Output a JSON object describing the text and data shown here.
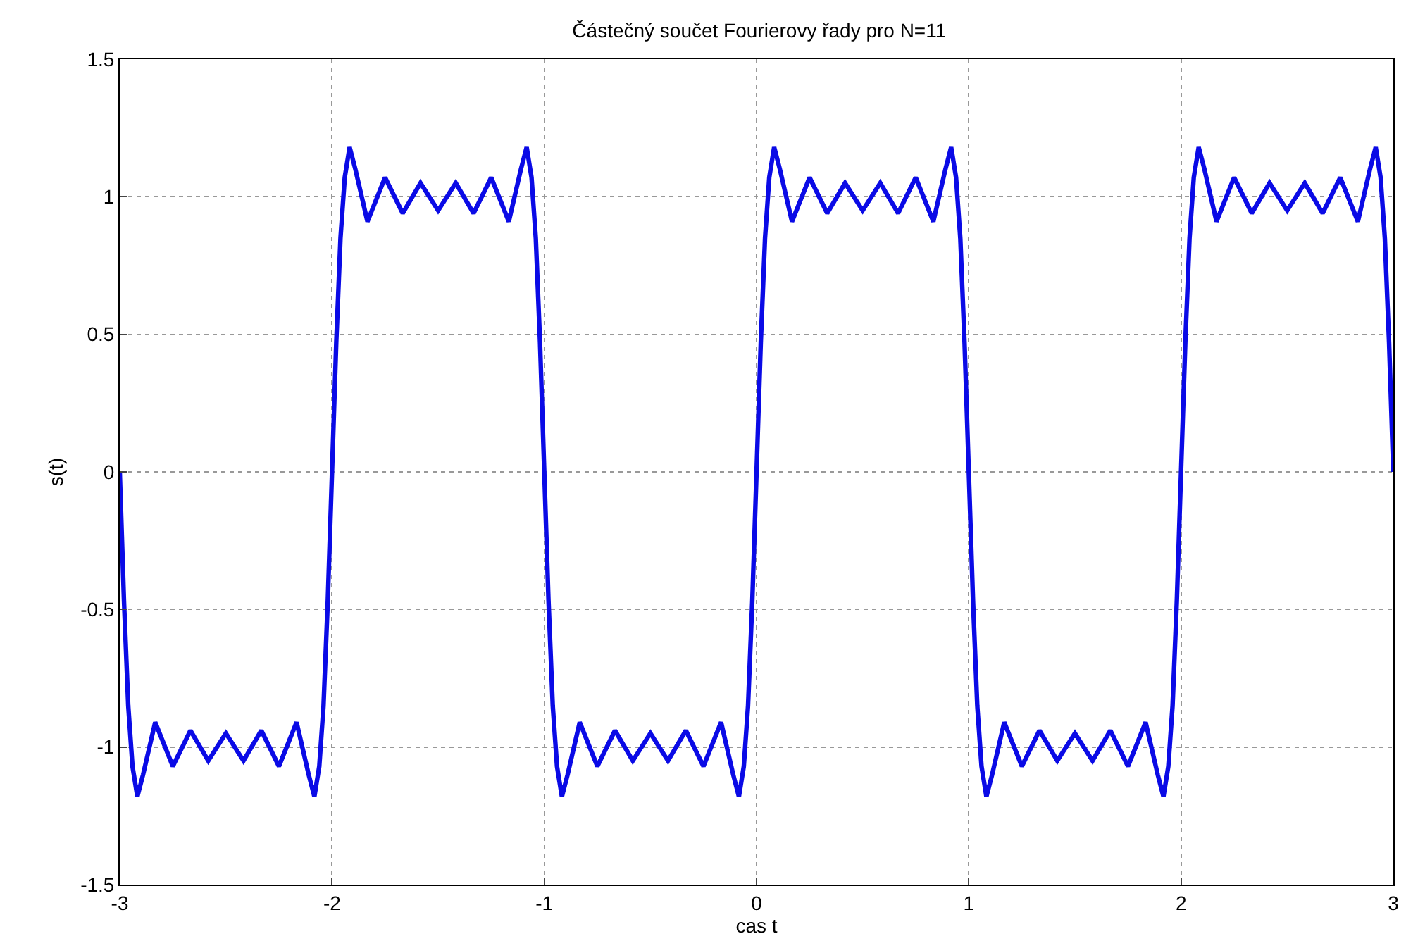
{
  "chart_data": {
    "type": "line",
    "title": "Částečný součet Fourierovy řady pro N=11",
    "xlabel": "cas t",
    "ylabel": "s(t)",
    "series": [
      {
        "color": "#0a0ae6",
        "x": [
          -3,
          -2.98,
          -2.96,
          -2.94,
          -2.917,
          -2.89,
          -2.833,
          -2.75,
          -2.667,
          -2.583,
          -2.5,
          -2.417,
          -2.333,
          -2.25,
          -2.167,
          -2.11,
          -2.083,
          -2.06,
          -2.04,
          -2.02,
          -2,
          -1.98,
          -1.96,
          -1.94,
          -1.917,
          -1.89,
          -1.833,
          -1.75,
          -1.667,
          -1.583,
          -1.5,
          -1.417,
          -1.333,
          -1.25,
          -1.167,
          -1.11,
          -1.083,
          -1.06,
          -1.04,
          -1.02,
          -1,
          -0.98,
          -0.96,
          -0.94,
          -0.917,
          -0.89,
          -0.833,
          -0.75,
          -0.667,
          -0.583,
          -0.5,
          -0.417,
          -0.333,
          -0.25,
          -0.167,
          -0.11,
          -0.083,
          -0.06,
          -0.04,
          -0.02,
          0,
          0.02,
          0.04,
          0.06,
          0.083,
          0.11,
          0.167,
          0.25,
          0.333,
          0.417,
          0.5,
          0.583,
          0.667,
          0.75,
          0.833,
          0.89,
          0.917,
          0.94,
          0.96,
          0.98,
          1,
          1.02,
          1.04,
          1.06,
          1.083,
          1.11,
          1.167,
          1.25,
          1.333,
          1.417,
          1.5,
          1.583,
          1.667,
          1.75,
          1.833,
          1.89,
          1.917,
          1.94,
          1.96,
          1.98,
          2,
          2.02,
          2.04,
          2.06,
          2.083,
          2.11,
          2.167,
          2.25,
          2.333,
          2.417,
          2.5,
          2.583,
          2.667,
          2.75,
          2.833,
          2.89,
          2.917,
          2.94,
          2.96,
          2.98,
          3
        ],
        "values": [
          0,
          -0.47,
          -0.85,
          -1.07,
          -1.18,
          -1.1,
          -0.91,
          -1.07,
          -0.94,
          -1.05,
          -0.95,
          -1.05,
          -0.94,
          -1.07,
          -0.91,
          -1.1,
          -1.18,
          -1.07,
          -0.85,
          -0.47,
          0,
          0.47,
          0.85,
          1.07,
          1.18,
          1.1,
          0.91,
          1.07,
          0.94,
          1.05,
          0.95,
          1.05,
          0.94,
          1.07,
          0.91,
          1.1,
          1.18,
          1.07,
          0.85,
          0.47,
          0,
          -0.47,
          -0.85,
          -1.07,
          -1.18,
          -1.1,
          -0.91,
          -1.07,
          -0.94,
          -1.05,
          -0.95,
          -1.05,
          -0.94,
          -1.07,
          -0.91,
          -1.1,
          -1.18,
          -1.07,
          -0.85,
          -0.47,
          0,
          0.47,
          0.85,
          1.07,
          1.18,
          1.1,
          0.91,
          1.07,
          0.94,
          1.05,
          0.95,
          1.05,
          0.94,
          1.07,
          0.91,
          1.1,
          1.18,
          1.07,
          0.85,
          0.47,
          0,
          -0.47,
          -0.85,
          -1.07,
          -1.18,
          -1.1,
          -0.91,
          -1.07,
          -0.94,
          -1.05,
          -0.95,
          -1.05,
          -0.94,
          -1.07,
          -0.91,
          -1.1,
          -1.18,
          -1.07,
          -0.85,
          -0.47,
          0,
          0.47,
          0.85,
          1.07,
          1.18,
          1.1,
          0.91,
          1.07,
          0.94,
          1.05,
          0.95,
          1.05,
          0.94,
          1.07,
          0.91,
          1.1,
          1.18,
          1.07,
          0.85,
          0.47,
          0
        ]
      }
    ],
    "xlim": [
      -3,
      3
    ],
    "xticks": [
      -3,
      -2,
      -1,
      0,
      1,
      2,
      3
    ],
    "ylim": [
      -1.5,
      1.5
    ],
    "yticks": [
      -1.5,
      -1,
      -0.5,
      0,
      0.5,
      1,
      1.5
    ],
    "grid": true,
    "line_style": "solid"
  }
}
